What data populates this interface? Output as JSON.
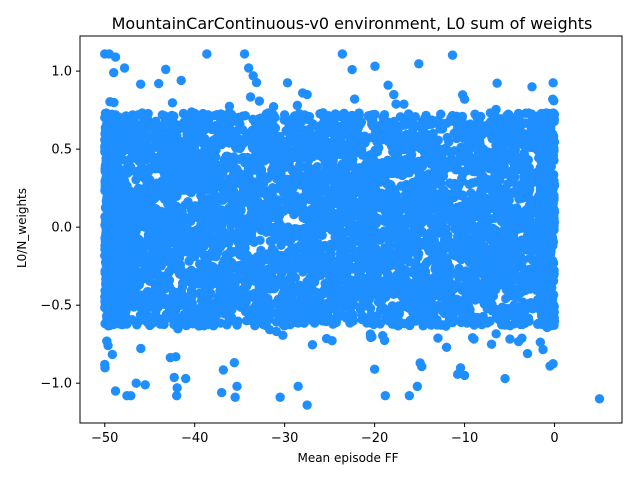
{
  "chart_data": {
    "type": "scatter",
    "title": "MountainCarContinuous-v0 environment, L0 sum of weights",
    "xlabel": "Mean episode FF",
    "ylabel": "L0/N_weights",
    "xlim": [
      -52.75,
      7.5
    ],
    "ylim": [
      -1.255,
      1.225
    ],
    "x_ticks": [
      -50,
      -40,
      -30,
      -20,
      -10,
      0
    ],
    "x_tick_labels": [
      "−50",
      "−40",
      "−30",
      "−20",
      "−10",
      "0"
    ],
    "y_ticks": [
      -1.0,
      -0.5,
      0.0,
      0.5,
      1.0
    ],
    "y_tick_labels": [
      "−1.0",
      "−0.5",
      "0.0",
      "0.5",
      "1.0"
    ],
    "grid": false,
    "marker_color": "#1f8fff",
    "cloud": {
      "x_range": [
        -50,
        0
      ],
      "y_core": [
        -0.6,
        0.7
      ],
      "y_extremes": [
        -1.08,
        1.11
      ],
      "approx_points": 6000
    },
    "points": [
      {
        "x": -50.0,
        "y": 1.11
      },
      {
        "x": -49.5,
        "y": 1.11
      },
      {
        "x": -48.8,
        "y": 1.09
      },
      {
        "x": -49.0,
        "y": 0.99
      },
      {
        "x": -47.8,
        "y": 1.02
      },
      {
        "x": -34.0,
        "y": 1.02
      },
      {
        "x": -33.5,
        "y": 0.97
      },
      {
        "x": -22.5,
        "y": 1.01
      },
      {
        "x": -18.5,
        "y": 0.91
      },
      {
        "x": -10.0,
        "y": 0.82
      },
      {
        "x": -0.2,
        "y": 0.82
      },
      {
        "x": -28.0,
        "y": 0.86
      },
      {
        "x": -27.5,
        "y": 0.85
      },
      {
        "x": -41.5,
        "y": 0.94
      },
      {
        "x": -44.0,
        "y": 0.92
      },
      {
        "x": 5.0,
        "y": -1.1
      },
      {
        "x": -27.5,
        "y": -1.14
      },
      {
        "x": -28.5,
        "y": -1.02
      },
      {
        "x": -30.5,
        "y": -1.09
      },
      {
        "x": -35.5,
        "y": -1.09
      },
      {
        "x": -35.3,
        "y": -1.02
      },
      {
        "x": -37.0,
        "y": -1.06
      },
      {
        "x": -48.8,
        "y": -1.05
      },
      {
        "x": -46.5,
        "y": -1.0
      },
      {
        "x": -45.5,
        "y": -1.01
      },
      {
        "x": -41.0,
        "y": -0.97
      },
      {
        "x": -10.0,
        "y": -0.95
      },
      {
        "x": -5.5,
        "y": -0.97
      },
      {
        "x": -0.5,
        "y": -0.89
      },
      {
        "x": -20.0,
        "y": -0.91
      },
      {
        "x": -50.0,
        "y": -0.88
      },
      {
        "x": -3.0,
        "y": -0.81
      },
      {
        "x": -12.0,
        "y": -0.77
      },
      {
        "x": -7.0,
        "y": -0.75
      },
      {
        "x": -13.5,
        "y": 0.6
      },
      {
        "x": -5.0,
        "y": 0.6
      }
    ]
  }
}
